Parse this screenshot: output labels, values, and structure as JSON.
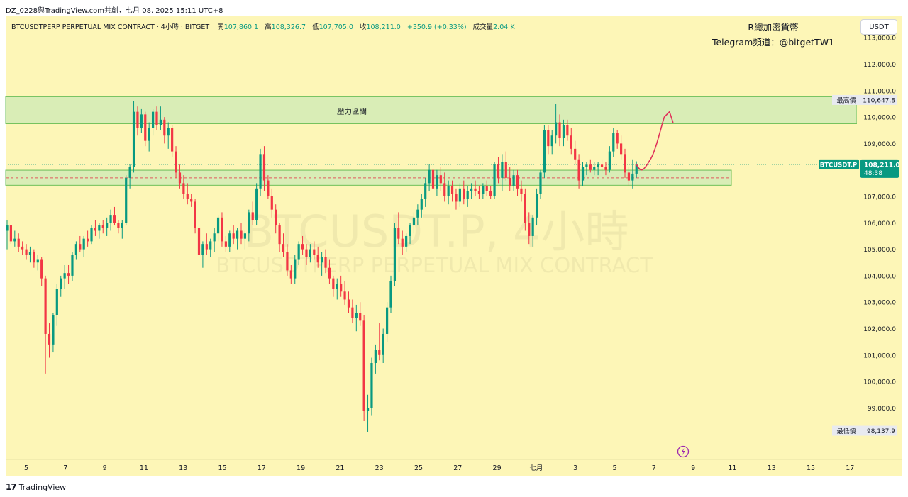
{
  "header": {
    "share_line": "DZ_0228與TradingView.com共創，七月 08, 2025 15:11 UTC+8"
  },
  "legend": {
    "symbol_desc": "BTCUSDTPERP PERPETUAL MIX CONTRACT · 4小時 · BITGET",
    "open_label": "開",
    "open": "107,860.1",
    "high_label": "高",
    "high": "108,326.7",
    "low_label": "低",
    "low": "107,705.0",
    "close_label": "收",
    "close": "108,211.0",
    "change": "+350.9 (+0.33%)",
    "volume_label": "成交量",
    "volume": "2.04 K"
  },
  "brand": {
    "line1": "R總加密貨幣",
    "line2": "Telegram頻道：@bitgetTW1"
  },
  "currency_button": "USDT",
  "watermark": {
    "line1": "BTCUSDT.P, 4小時",
    "line2": "BTCUSDTPERP PERPETUAL MIX CONTRACT"
  },
  "colors": {
    "background": "#fdf6b7",
    "up": "#089981",
    "down": "#f23645",
    "zone_fill": "#d9edb6",
    "zone_border": "#6cbf58",
    "dashed_line": "#e05c5c",
    "arrow": "#e0325a",
    "price_tag": "#089981"
  },
  "chart_data": {
    "type": "candlestick",
    "timeframe": "4小時",
    "ylim": [
      97600,
      113600
    ],
    "yticks": [
      99000,
      100000,
      101000,
      102000,
      103000,
      104000,
      105000,
      106000,
      107000,
      108000,
      109000,
      110000,
      111000,
      112000,
      113000
    ],
    "ytick_labels": [
      "99,000.0",
      "100,000.0",
      "101,000.0",
      "102,000.0",
      "103,000.0",
      "104,000.0",
      "105,000.0",
      "106,000.0",
      "107,000.0",
      "108,000.0",
      "109,000.0",
      "110,000.0",
      "111,000.0",
      "112,000.0",
      "113,000.0"
    ],
    "x_labels": [
      "5",
      "7",
      "9",
      "11",
      "13",
      "15",
      "17",
      "19",
      "21",
      "23",
      "25",
      "27",
      "29",
      "七月",
      "3",
      "5",
      "7",
      "9",
      "11",
      "13",
      "15",
      "17"
    ],
    "resistance_zone": {
      "label": "壓力區間",
      "from": 109750,
      "to": 110770,
      "dashed": 110230
    },
    "support_zone": {
      "from": 107420,
      "to": 107990,
      "dashed": 107700
    },
    "tags": {
      "highest": {
        "label": "最高價",
        "value": "110,647.8",
        "y": 110647.8
      },
      "current": {
        "symbol": "BTCUSDT.P",
        "value": "108,211.0",
        "countdown": "48:38",
        "y": 108211
      },
      "lowest": {
        "label": "最低價",
        "value": "98,137.9",
        "y": 98137.9
      }
    },
    "candles": [
      [
        105700,
        106100,
        105000,
        105900
      ],
      [
        105900,
        105900,
        105200,
        105300
      ],
      [
        105300,
        105700,
        105100,
        105400
      ],
      [
        105400,
        105600,
        104900,
        105100
      ],
      [
        105100,
        105300,
        104800,
        105000
      ],
      [
        105000,
        105200,
        104600,
        104800
      ],
      [
        104800,
        105100,
        104500,
        104900
      ],
      [
        104900,
        105000,
        104300,
        104500
      ],
      [
        104500,
        104800,
        104200,
        104600
      ],
      [
        104600,
        104700,
        103600,
        103900
      ],
      [
        103900,
        104000,
        100300,
        101800
      ],
      [
        101800,
        102200,
        100900,
        101400
      ],
      [
        101400,
        102600,
        101100,
        102500
      ],
      [
        102500,
        103700,
        102100,
        103500
      ],
      [
        103500,
        104000,
        103200,
        103900
      ],
      [
        103900,
        104400,
        103500,
        104100
      ],
      [
        104100,
        104400,
        103700,
        104000
      ],
      [
        104000,
        104900,
        103800,
        104800
      ],
      [
        104800,
        105300,
        104600,
        105200
      ],
      [
        105200,
        105500,
        104900,
        105000
      ],
      [
        105000,
        105500,
        104700,
        105400
      ],
      [
        105400,
        105700,
        105100,
        105300
      ],
      [
        105300,
        105900,
        105200,
        105800
      ],
      [
        105800,
        106100,
        105500,
        105700
      ],
      [
        105700,
        106000,
        105400,
        105900
      ],
      [
        105900,
        106100,
        105600,
        105800
      ],
      [
        105800,
        106200,
        105500,
        106000
      ],
      [
        106000,
        106500,
        105700,
        106300
      ],
      [
        106300,
        106600,
        105900,
        106000
      ],
      [
        106000,
        106100,
        105600,
        105800
      ],
      [
        105800,
        106100,
        105400,
        106000
      ],
      [
        106000,
        107800,
        105900,
        107700
      ],
      [
        107700,
        108200,
        107300,
        108100
      ],
      [
        108100,
        110600,
        107900,
        110200
      ],
      [
        110200,
        110400,
        109300,
        109600
      ],
      [
        109600,
        110300,
        109400,
        110100
      ],
      [
        110100,
        110200,
        108900,
        109100
      ],
      [
        109100,
        109800,
        108700,
        109600
      ],
      [
        109600,
        110300,
        109300,
        110200
      ],
      [
        110200,
        110400,
        109500,
        109700
      ],
      [
        109700,
        110400,
        109500,
        109900
      ],
      [
        109900,
        110000,
        109000,
        109300
      ],
      [
        109300,
        109800,
        108800,
        109600
      ],
      [
        109600,
        109700,
        108500,
        108700
      ],
      [
        108700,
        108900,
        107700,
        107900
      ],
      [
        107900,
        108200,
        107300,
        107500
      ],
      [
        107500,
        107800,
        106900,
        107100
      ],
      [
        107100,
        107500,
        106700,
        106900
      ],
      [
        106900,
        107100,
        106600,
        106800
      ],
      [
        106800,
        106900,
        105600,
        105800
      ],
      [
        105800,
        106000,
        102600,
        104800
      ],
      [
        104800,
        105300,
        104300,
        105200
      ],
      [
        105200,
        105600,
        104800,
        105000
      ],
      [
        105000,
        105400,
        104700,
        105300
      ],
      [
        105300,
        105800,
        104900,
        105600
      ],
      [
        105600,
        106300,
        105300,
        106200
      ],
      [
        106200,
        106400,
        105100,
        105300
      ],
      [
        105300,
        105500,
        104900,
        105100
      ],
      [
        105100,
        105700,
        104900,
        105600
      ],
      [
        105600,
        105900,
        105200,
        105400
      ],
      [
        105400,
        105800,
        105000,
        105700
      ],
      [
        105700,
        106000,
        105200,
        105400
      ],
      [
        105400,
        105700,
        105000,
        105600
      ],
      [
        105600,
        106500,
        105300,
        106400
      ],
      [
        106400,
        106800,
        105900,
        106100
      ],
      [
        106100,
        107500,
        105900,
        107300
      ],
      [
        107300,
        108800,
        107000,
        108600
      ],
      [
        108600,
        108900,
        107200,
        107600
      ],
      [
        107600,
        107800,
        106900,
        107000
      ],
      [
        107000,
        107300,
        106200,
        106500
      ],
      [
        106500,
        106700,
        105600,
        105900
      ],
      [
        105900,
        106000,
        104900,
        105200
      ],
      [
        105200,
        105600,
        104700,
        104900
      ],
      [
        104900,
        105200,
        104000,
        104200
      ],
      [
        104200,
        104400,
        103700,
        103900
      ],
      [
        103900,
        104800,
        103700,
        104600
      ],
      [
        104600,
        105300,
        104400,
        105200
      ],
      [
        105200,
        105500,
        104800,
        105000
      ],
      [
        105000,
        105200,
        104400,
        104700
      ],
      [
        104700,
        105200,
        104500,
        105000
      ],
      [
        105000,
        105300,
        104600,
        104800
      ],
      [
        104800,
        105100,
        104300,
        104500
      ],
      [
        104500,
        104900,
        104000,
        104700
      ],
      [
        104700,
        105000,
        104100,
        104300
      ],
      [
        104300,
        104600,
        103700,
        103900
      ],
      [
        103900,
        104000,
        103200,
        103500
      ],
      [
        103500,
        103900,
        103100,
        103700
      ],
      [
        103700,
        104000,
        103200,
        103400
      ],
      [
        103400,
        103800,
        102900,
        103100
      ],
      [
        103100,
        103400,
        102600,
        102800
      ],
      [
        102800,
        103100,
        102200,
        102400
      ],
      [
        102400,
        102900,
        101900,
        102600
      ],
      [
        102600,
        103000,
        102100,
        102300
      ],
      [
        102300,
        102500,
        98500,
        98900
      ],
      [
        98900,
        99500,
        98100,
        99000
      ],
      [
        99000,
        100900,
        98700,
        100700
      ],
      [
        100700,
        101400,
        100300,
        101200
      ],
      [
        101200,
        102200,
        100800,
        101000
      ],
      [
        101000,
        102000,
        100700,
        101800
      ],
      [
        101800,
        103000,
        101500,
        102800
      ],
      [
        102800,
        104000,
        102600,
        103800
      ],
      [
        103800,
        106000,
        103600,
        105800
      ],
      [
        105800,
        106400,
        105200,
        105400
      ],
      [
        105400,
        105700,
        104800,
        105100
      ],
      [
        105100,
        105600,
        104900,
        105500
      ],
      [
        105500,
        106000,
        105200,
        105900
      ],
      [
        105900,
        106400,
        105600,
        106200
      ],
      [
        106200,
        106700,
        105900,
        106500
      ],
      [
        106500,
        107100,
        106200,
        106900
      ],
      [
        106900,
        107700,
        106600,
        107500
      ],
      [
        107500,
        108200,
        107200,
        108000
      ],
      [
        108000,
        108300,
        107100,
        107300
      ],
      [
        107300,
        108000,
        107000,
        107800
      ],
      [
        107800,
        108100,
        107200,
        107500
      ],
      [
        107500,
        107900,
        106800,
        107000
      ],
      [
        107000,
        107600,
        106700,
        107400
      ],
      [
        107400,
        107600,
        106800,
        107100
      ],
      [
        107100,
        107300,
        106500,
        106800
      ],
      [
        106800,
        107500,
        106600,
        107300
      ],
      [
        107300,
        107600,
        106700,
        106900
      ],
      [
        106900,
        107400,
        106600,
        107200
      ],
      [
        107200,
        107500,
        106900,
        107300
      ],
      [
        107300,
        107600,
        107000,
        107200
      ],
      [
        107200,
        107400,
        106900,
        107100
      ],
      [
        107100,
        107500,
        106900,
        107400
      ],
      [
        107400,
        107600,
        107000,
        107200
      ],
      [
        107200,
        107400,
        106900,
        107000
      ],
      [
        107000,
        108300,
        106900,
        108200
      ],
      [
        108200,
        108500,
        107500,
        107700
      ],
      [
        107700,
        108600,
        107200,
        108300
      ],
      [
        108300,
        108700,
        107600,
        107700
      ],
      [
        107700,
        108100,
        107200,
        107400
      ],
      [
        107400,
        108000,
        107200,
        107800
      ],
      [
        107800,
        108000,
        107000,
        107300
      ],
      [
        107300,
        107600,
        106800,
        107100
      ],
      [
        107100,
        107300,
        105700,
        106000
      ],
      [
        106000,
        106400,
        105200,
        105500
      ],
      [
        105500,
        106300,
        105100,
        106200
      ],
      [
        106200,
        107300,
        105900,
        107100
      ],
      [
        107100,
        108000,
        106900,
        107900
      ],
      [
        107900,
        109700,
        107700,
        109500
      ],
      [
        109500,
        109700,
        108600,
        108900
      ],
      [
        108900,
        109500,
        108600,
        109300
      ],
      [
        109300,
        110500,
        109000,
        109800
      ],
      [
        109800,
        110100,
        108900,
        109200
      ],
      [
        109200,
        109900,
        108900,
        109700
      ],
      [
        109700,
        109900,
        109100,
        109300
      ],
      [
        109300,
        109600,
        108600,
        108800
      ],
      [
        108800,
        109100,
        108200,
        108400
      ],
      [
        108400,
        108600,
        107300,
        107600
      ],
      [
        107600,
        108300,
        107400,
        108100
      ],
      [
        108100,
        108300,
        107800,
        108200
      ],
      [
        108200,
        108400,
        107900,
        108000
      ],
      [
        108000,
        108300,
        107800,
        108100
      ],
      [
        108100,
        108300,
        107800,
        108200
      ],
      [
        108200,
        108400,
        107900,
        108100
      ],
      [
        108100,
        108300,
        107800,
        108000
      ],
      [
        108000,
        108900,
        107900,
        108700
      ],
      [
        108700,
        109600,
        108500,
        109400
      ],
      [
        109400,
        109500,
        108800,
        109000
      ],
      [
        109000,
        109300,
        108400,
        108600
      ],
      [
        108600,
        108800,
        107700,
        107900
      ],
      [
        107900,
        108100,
        107400,
        107600
      ],
      [
        107600,
        108400,
        107300,
        107860
      ],
      [
        107860,
        108326,
        107705,
        108211
      ]
    ],
    "projection": [
      [
        108211,
        0
      ],
      [
        108000,
        1.5
      ],
      [
        108400,
        4
      ],
      [
        110000,
        8
      ],
      [
        110200,
        9.5
      ],
      [
        109800,
        10.5
      ]
    ]
  }
}
